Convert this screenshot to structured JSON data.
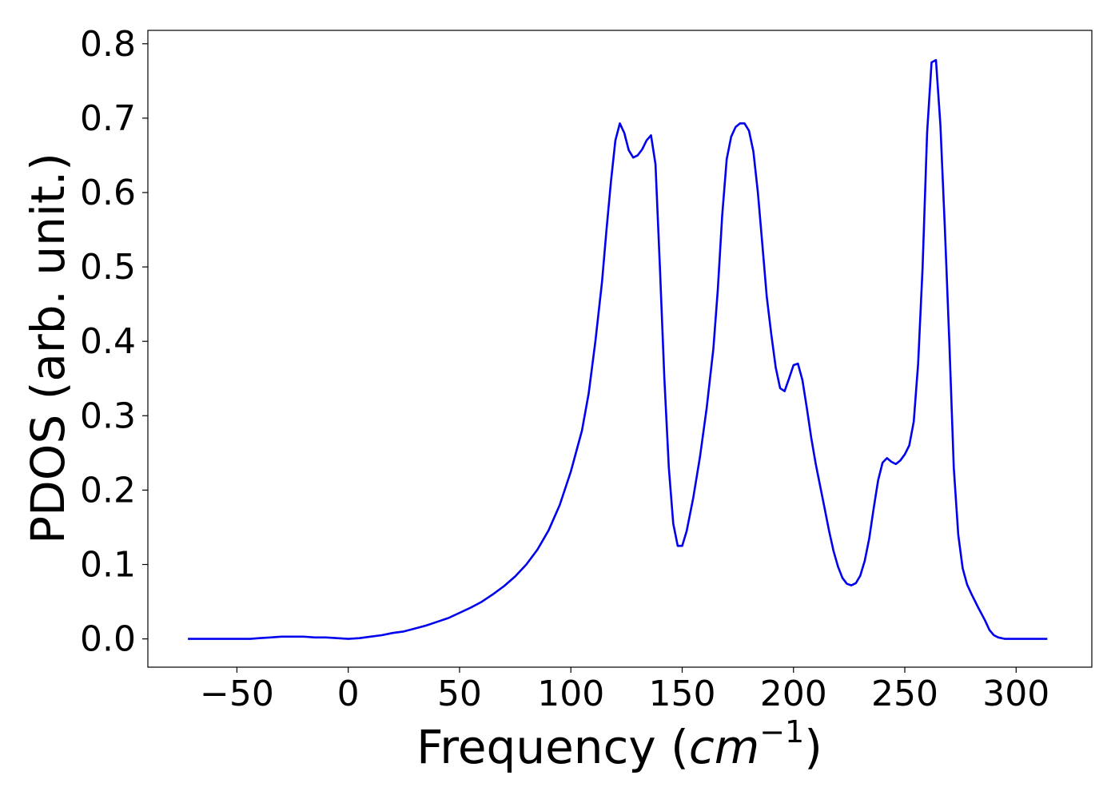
{
  "chart_data": {
    "type": "line",
    "title": "",
    "xlabel": "Frequency (",
    "xlabel_math": "cm",
    "xlabel_exp": "−1",
    "xlabel_close": ")",
    "ylabel": "PDOS (arb. unit.)",
    "xlim": [
      -90,
      334
    ],
    "ylim": [
      -0.038,
      0.818
    ],
    "x_ticks": [
      -50,
      0,
      50,
      100,
      150,
      200,
      250,
      300
    ],
    "x_tick_labels": [
      "−50",
      "0",
      "50",
      "100",
      "150",
      "200",
      "250",
      "300"
    ],
    "y_ticks": [
      0.0,
      0.1,
      0.2,
      0.3,
      0.4,
      0.5,
      0.6,
      0.7,
      0.8
    ],
    "y_tick_labels": [
      "0.0",
      "0.1",
      "0.2",
      "0.3",
      "0.4",
      "0.5",
      "0.6",
      "0.7",
      "0.8"
    ],
    "grid": false,
    "legend": "none",
    "series": [
      {
        "color": "#0000ee",
        "points": [
          [
            -72,
            0.0
          ],
          [
            -60,
            0.0
          ],
          [
            -50,
            0.0
          ],
          [
            -44,
            0.0
          ],
          [
            -40,
            0.001
          ],
          [
            -35,
            0.002
          ],
          [
            -30,
            0.003
          ],
          [
            -25,
            0.003
          ],
          [
            -20,
            0.003
          ],
          [
            -15,
            0.002
          ],
          [
            -10,
            0.002
          ],
          [
            -5,
            0.001
          ],
          [
            0,
            0.0
          ],
          [
            5,
            0.001
          ],
          [
            10,
            0.003
          ],
          [
            15,
            0.005
          ],
          [
            20,
            0.008
          ],
          [
            25,
            0.01
          ],
          [
            30,
            0.014
          ],
          [
            35,
            0.018
          ],
          [
            40,
            0.023
          ],
          [
            45,
            0.028
          ],
          [
            50,
            0.035
          ],
          [
            55,
            0.042
          ],
          [
            60,
            0.05
          ],
          [
            65,
            0.06
          ],
          [
            70,
            0.071
          ],
          [
            75,
            0.084
          ],
          [
            80,
            0.1
          ],
          [
            85,
            0.12
          ],
          [
            90,
            0.146
          ],
          [
            95,
            0.18
          ],
          [
            100,
            0.225
          ],
          [
            105,
            0.28
          ],
          [
            108,
            0.33
          ],
          [
            111,
            0.4
          ],
          [
            114,
            0.48
          ],
          [
            116,
            0.55
          ],
          [
            118,
            0.615
          ],
          [
            120,
            0.67
          ],
          [
            122,
            0.693
          ],
          [
            124,
            0.68
          ],
          [
            126,
            0.657
          ],
          [
            128,
            0.647
          ],
          [
            130,
            0.65
          ],
          [
            132,
            0.658
          ],
          [
            134,
            0.67
          ],
          [
            136,
            0.677
          ],
          [
            138,
            0.638
          ],
          [
            140,
            0.5
          ],
          [
            142,
            0.35
          ],
          [
            144,
            0.23
          ],
          [
            146,
            0.155
          ],
          [
            148,
            0.125
          ],
          [
            150,
            0.125
          ],
          [
            152,
            0.145
          ],
          [
            155,
            0.19
          ],
          [
            158,
            0.245
          ],
          [
            161,
            0.31
          ],
          [
            164,
            0.39
          ],
          [
            166,
            0.47
          ],
          [
            168,
            0.57
          ],
          [
            170,
            0.645
          ],
          [
            172,
            0.675
          ],
          [
            174,
            0.688
          ],
          [
            176,
            0.693
          ],
          [
            178,
            0.693
          ],
          [
            180,
            0.683
          ],
          [
            182,
            0.655
          ],
          [
            184,
            0.6
          ],
          [
            186,
            0.53
          ],
          [
            188,
            0.46
          ],
          [
            190,
            0.41
          ],
          [
            192,
            0.365
          ],
          [
            194,
            0.337
          ],
          [
            196,
            0.333
          ],
          [
            198,
            0.35
          ],
          [
            200,
            0.368
          ],
          [
            202,
            0.37
          ],
          [
            204,
            0.348
          ],
          [
            206,
            0.31
          ],
          [
            208,
            0.27
          ],
          [
            210,
            0.235
          ],
          [
            212,
            0.205
          ],
          [
            214,
            0.175
          ],
          [
            216,
            0.145
          ],
          [
            218,
            0.118
          ],
          [
            220,
            0.097
          ],
          [
            222,
            0.082
          ],
          [
            224,
            0.074
          ],
          [
            226,
            0.072
          ],
          [
            228,
            0.075
          ],
          [
            230,
            0.085
          ],
          [
            232,
            0.105
          ],
          [
            234,
            0.135
          ],
          [
            236,
            0.175
          ],
          [
            238,
            0.213
          ],
          [
            240,
            0.237
          ],
          [
            242,
            0.243
          ],
          [
            244,
            0.238
          ],
          [
            246,
            0.235
          ],
          [
            248,
            0.24
          ],
          [
            250,
            0.248
          ],
          [
            252,
            0.26
          ],
          [
            254,
            0.292
          ],
          [
            256,
            0.37
          ],
          [
            258,
            0.5
          ],
          [
            260,
            0.68
          ],
          [
            262,
            0.775
          ],
          [
            264,
            0.778
          ],
          [
            266,
            0.69
          ],
          [
            268,
            0.55
          ],
          [
            270,
            0.4
          ],
          [
            272,
            0.23
          ],
          [
            274,
            0.14
          ],
          [
            276,
            0.095
          ],
          [
            278,
            0.073
          ],
          [
            280,
            0.06
          ],
          [
            283,
            0.042
          ],
          [
            286,
            0.025
          ],
          [
            288,
            0.012
          ],
          [
            290,
            0.005
          ],
          [
            292,
            0.002
          ],
          [
            295,
            0.0
          ],
          [
            300,
            0.0
          ],
          [
            310,
            0.0
          ],
          [
            314,
            0.0
          ]
        ]
      }
    ]
  }
}
